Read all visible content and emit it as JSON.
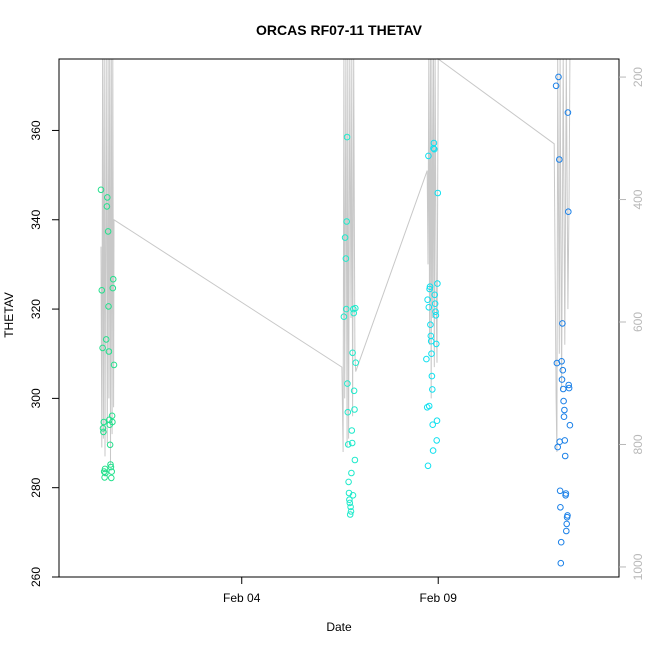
{
  "chart_data": {
    "type": "scatter",
    "title": "ORCAS RF07-11 THETAV",
    "xlabel": "Date",
    "ylabel": "THETAV",
    "x_ticks": [
      "Feb 04",
      "Feb 09"
    ],
    "x_tick_values": [
      4.0,
      9.0
    ],
    "xlim": [
      -0.65,
      13.6
    ],
    "ylim": [
      260,
      376
    ],
    "y_ticks": [
      260,
      280,
      300,
      320,
      340,
      360
    ],
    "y2_ticks": [
      200,
      400,
      600,
      800,
      1000
    ],
    "y2lim": [
      1016.4,
      170.5
    ],
    "y2_reversed": true,
    "grid": false,
    "line_color": "#c8c8c8",
    "series": [
      {
        "color": "#22e08c",
        "points": [
          [
            0.42,
            346.7
          ],
          [
            0.44,
            324.2
          ],
          [
            0.46,
            311.3
          ],
          [
            0.47,
            293.3
          ],
          [
            0.48,
            292.5
          ],
          [
            0.49,
            294.7
          ],
          [
            0.5,
            283.6
          ],
          [
            0.51,
            282.3
          ],
          [
            0.52,
            284.2
          ],
          [
            0.53,
            283.3
          ],
          [
            0.55,
            313.2
          ],
          [
            0.57,
            343.0
          ],
          [
            0.58,
            345.0
          ],
          [
            0.6,
            337.4
          ],
          [
            0.61,
            320.6
          ],
          [
            0.62,
            310.5
          ],
          [
            0.63,
            295.2
          ],
          [
            0.64,
            294.1
          ],
          [
            0.65,
            289.6
          ],
          [
            0.66,
            285.2
          ],
          [
            0.67,
            284.6
          ],
          [
            0.68,
            282.2
          ],
          [
            0.69,
            283.6
          ],
          [
            0.7,
            296.1
          ],
          [
            0.71,
            294.7
          ],
          [
            0.72,
            324.7
          ],
          [
            0.73,
            326.7
          ],
          [
            0.75,
            307.5
          ]
        ]
      },
      {
        "color": "#1eeacb",
        "points": [
          [
            6.6,
            318.3
          ],
          [
            6.63,
            336.0
          ],
          [
            6.65,
            331.3
          ],
          [
            6.66,
            320.0
          ],
          [
            6.67,
            339.6
          ],
          [
            6.68,
            358.5
          ],
          [
            6.69,
            303.3
          ],
          [
            6.7,
            296.9
          ],
          [
            6.71,
            289.7
          ],
          [
            6.72,
            281.3
          ],
          [
            6.73,
            278.8
          ],
          [
            6.74,
            277.3
          ],
          [
            6.75,
            276.6
          ],
          [
            6.76,
            274.0
          ],
          [
            6.77,
            275.7
          ],
          [
            6.78,
            274.7
          ],
          [
            6.79,
            283.3
          ],
          [
            6.8,
            292.8
          ],
          [
            6.81,
            290.0
          ],
          [
            6.82,
            310.2
          ],
          [
            6.83,
            278.3
          ],
          [
            6.84,
            320.0
          ],
          [
            6.85,
            319.1
          ],
          [
            6.86,
            301.7
          ],
          [
            6.87,
            297.5
          ],
          [
            6.88,
            286.2
          ],
          [
            6.89,
            320.2
          ],
          [
            6.9,
            308.0
          ]
        ]
      },
      {
        "color": "#11e0ef",
        "points": [
          [
            8.7,
            308.8
          ],
          [
            8.72,
            298.0
          ],
          [
            8.73,
            322.1
          ],
          [
            8.74,
            284.9
          ],
          [
            8.75,
            354.3
          ],
          [
            8.76,
            320.4
          ],
          [
            8.77,
            298.3
          ],
          [
            8.78,
            324.5
          ],
          [
            8.79,
            325.0
          ],
          [
            8.8,
            316.5
          ],
          [
            8.81,
            314.0
          ],
          [
            8.82,
            312.8
          ],
          [
            8.83,
            310.0
          ],
          [
            8.84,
            305.0
          ],
          [
            8.85,
            302.0
          ],
          [
            8.86,
            294.1
          ],
          [
            8.87,
            288.3
          ],
          [
            8.88,
            356.0
          ],
          [
            8.89,
            357.2
          ],
          [
            8.9,
            355.8
          ],
          [
            8.91,
            323.2
          ],
          [
            8.92,
            321.2
          ],
          [
            8.93,
            319.4
          ],
          [
            8.94,
            318.6
          ],
          [
            8.95,
            312.2
          ],
          [
            8.96,
            290.6
          ],
          [
            8.97,
            295.0
          ],
          [
            8.98,
            325.7
          ],
          [
            8.99,
            346.0
          ]
        ]
      },
      {
        "color": "#1a80e8",
        "points": [
          [
            12.0,
            370.0
          ],
          [
            12.02,
            307.9
          ],
          [
            12.04,
            289.1
          ],
          [
            12.06,
            372.0
          ],
          [
            12.08,
            353.5
          ],
          [
            12.09,
            290.3
          ],
          [
            12.1,
            279.3
          ],
          [
            12.11,
            275.6
          ],
          [
            12.12,
            263.1
          ],
          [
            12.13,
            267.8
          ],
          [
            12.14,
            308.3
          ],
          [
            12.15,
            304.2
          ],
          [
            12.16,
            316.8
          ],
          [
            12.17,
            306.3
          ],
          [
            12.18,
            302.1
          ],
          [
            12.19,
            299.4
          ],
          [
            12.2,
            295.9
          ],
          [
            12.21,
            297.4
          ],
          [
            12.22,
            290.6
          ],
          [
            12.23,
            287.1
          ],
          [
            12.24,
            278.3
          ],
          [
            12.25,
            278.7
          ],
          [
            12.26,
            270.3
          ],
          [
            12.27,
            271.9
          ],
          [
            12.28,
            273.4
          ],
          [
            12.29,
            273.8
          ],
          [
            12.3,
            364.0
          ],
          [
            12.31,
            341.8
          ],
          [
            12.32,
            303.0
          ],
          [
            12.33,
            302.3
          ],
          [
            12.35,
            294.0
          ]
        ]
      }
    ],
    "trace": [
      [
        0.42,
        334
      ],
      [
        0.44,
        289
      ],
      [
        0.46,
        376
      ],
      [
        0.48,
        291
      ],
      [
        0.5,
        376
      ],
      [
        0.52,
        287
      ],
      [
        0.55,
        376
      ],
      [
        0.58,
        290
      ],
      [
        0.6,
        376
      ],
      [
        0.62,
        300
      ],
      [
        0.64,
        376
      ],
      [
        0.66,
        285
      ],
      [
        0.68,
        376
      ],
      [
        0.7,
        292
      ],
      [
        0.72,
        376
      ],
      [
        0.74,
        298
      ],
      [
        0.75,
        340
      ],
      [
        6.55,
        307
      ],
      [
        6.58,
        288
      ],
      [
        6.6,
        376
      ],
      [
        6.62,
        300
      ],
      [
        6.65,
        376
      ],
      [
        6.68,
        289
      ],
      [
        6.7,
        376
      ],
      [
        6.72,
        291
      ],
      [
        6.75,
        376
      ],
      [
        6.78,
        318
      ],
      [
        6.8,
        376
      ],
      [
        6.82,
        296
      ],
      [
        6.85,
        376
      ],
      [
        6.88,
        310
      ],
      [
        6.9,
        306
      ],
      [
        8.72,
        351
      ],
      [
        8.74,
        330
      ],
      [
        8.76,
        376
      ],
      [
        8.78,
        312
      ],
      [
        8.8,
        376
      ],
      [
        8.82,
        300
      ],
      [
        8.84,
        376
      ],
      [
        8.86,
        318
      ],
      [
        8.88,
        376
      ],
      [
        8.9,
        307
      ],
      [
        8.92,
        376
      ],
      [
        8.95,
        320
      ],
      [
        8.97,
        308
      ],
      [
        9.0,
        376
      ],
      [
        11.95,
        357
      ],
      [
        12.0,
        300
      ],
      [
        12.02,
        288
      ],
      [
        12.04,
        376
      ],
      [
        12.08,
        310
      ],
      [
        12.1,
        376
      ],
      [
        12.14,
        302
      ],
      [
        12.18,
        376
      ],
      [
        12.22,
        312
      ],
      [
        12.26,
        376
      ],
      [
        12.3,
        320
      ],
      [
        12.33,
        345
      ],
      [
        12.35,
        376
      ]
    ]
  }
}
